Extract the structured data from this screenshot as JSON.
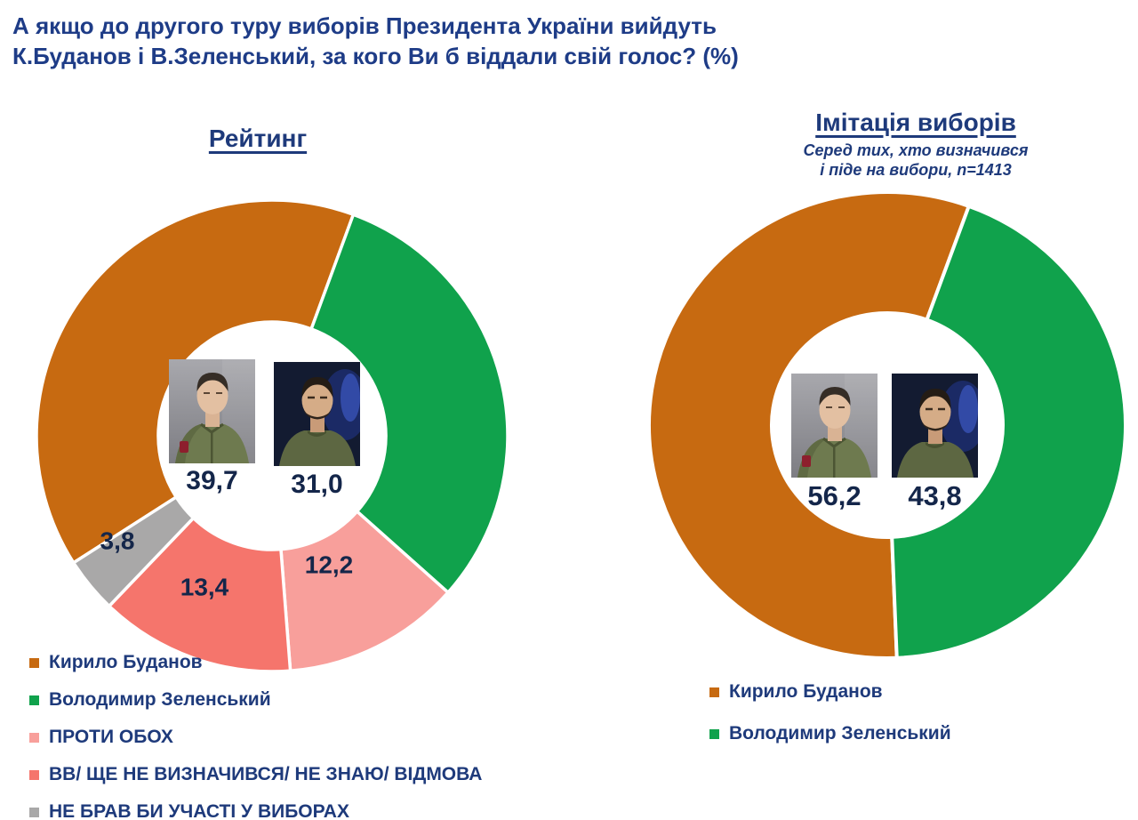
{
  "header": {
    "title_line1": "А якщо до другого туру виборів Президента України вийдуть",
    "title_line2": "К.Буданов і В.Зеленський, за кого Ви б віддали свій голос? (%)"
  },
  "colors": {
    "budanov_orange": "#C76A11",
    "zelensky_green": "#10A24C",
    "against_both_pink": "#F89F9B",
    "undecided_red": "#F5756C",
    "no_vote_gray": "#A9A8A8",
    "title_navy": "#1e3c87",
    "text_navy": "#1e3a7b",
    "value_navy": "#14264a",
    "background": "#ffffff"
  },
  "chart_data": [
    {
      "type": "pie",
      "subtype": "donut",
      "title": "Рейтинг",
      "unit": "%",
      "legend_position": "bottom-left",
      "center_photos": [
        "Кирило Буданов",
        "Володимир Зеленський"
      ],
      "slices": [
        {
          "name": "Кирило Буданов",
          "value": 39.7,
          "label": "39,7",
          "color": "#C76A11"
        },
        {
          "name": "Володимир Зеленський",
          "value": 31.0,
          "label": "31,0",
          "color": "#10A24C"
        },
        {
          "name": "ПРОТИ ОБОХ",
          "value": 12.2,
          "label": "12,2",
          "color": "#F89F9B"
        },
        {
          "name": "ВВ/ ЩЕ НЕ ВИЗНАЧИВСЯ/ НЕ ЗНАЮ/ ВІДМОВА",
          "value": 13.4,
          "label": "13,4",
          "color": "#F5756C"
        },
        {
          "name": "НЕ БРАВ БИ УЧАСТІ У ВИБОРАХ",
          "value": 3.8,
          "label": "3,8",
          "color": "#A9A8A8"
        }
      ]
    },
    {
      "type": "pie",
      "subtype": "donut",
      "title": "Імітація виборів",
      "subtitle_lines": [
        "Серед тих, хто визначився",
        "і піде на вибори, n=1413"
      ],
      "unit": "%",
      "legend_position": "bottom",
      "center_photos": [
        "Кирило Буданов",
        "Володимир Зеленський"
      ],
      "slices": [
        {
          "name": "Кирило Буданов",
          "value": 56.2,
          "label": "56,2",
          "color": "#C76A11"
        },
        {
          "name": "Володимир Зеленський",
          "value": 43.8,
          "label": "43,8",
          "color": "#10A24C"
        }
      ]
    }
  ]
}
